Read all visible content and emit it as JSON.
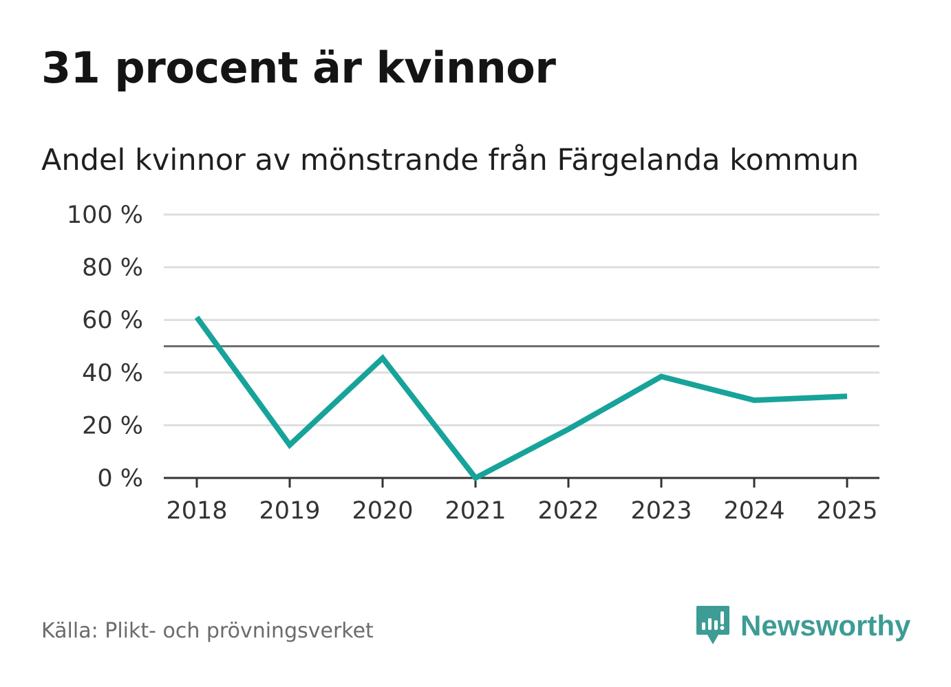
{
  "headline": "31 procent är kvinnor",
  "subtitle": "Andel kvinnor av mönstrande från Färgelanda kommun",
  "source": "Källa: Plikt- och prövningsverket",
  "brand": {
    "name": "Newsworthy",
    "icon": "newsworthy-logo-icon",
    "color": "#3d9c94"
  },
  "colors": {
    "line": "#17a39a",
    "grid": "#dedede",
    "reference": "#6e6e6e",
    "axis": "#333333"
  },
  "chart_data": {
    "type": "line",
    "title": "31 procent är kvinnor",
    "subtitle": "Andel kvinnor av mönstrande från Färgelanda kommun",
    "xlabel": "",
    "ylabel": "",
    "categories": [
      "2018",
      "2019",
      "2020",
      "2021",
      "2022",
      "2023",
      "2024",
      "2025"
    ],
    "series": [
      {
        "name": "Andel kvinnor",
        "values": [
          61,
          12.5,
          45.5,
          0,
          18.5,
          38.5,
          29.5,
          31
        ]
      }
    ],
    "reference_line": 50,
    "ylim": [
      0,
      100
    ],
    "yticks": [
      0,
      20,
      40,
      60,
      80,
      100
    ],
    "ytick_labels": [
      "0 %",
      "20 %",
      "40 %",
      "60 %",
      "80 %",
      "100 %"
    ],
    "grid": true,
    "legend": "none"
  }
}
